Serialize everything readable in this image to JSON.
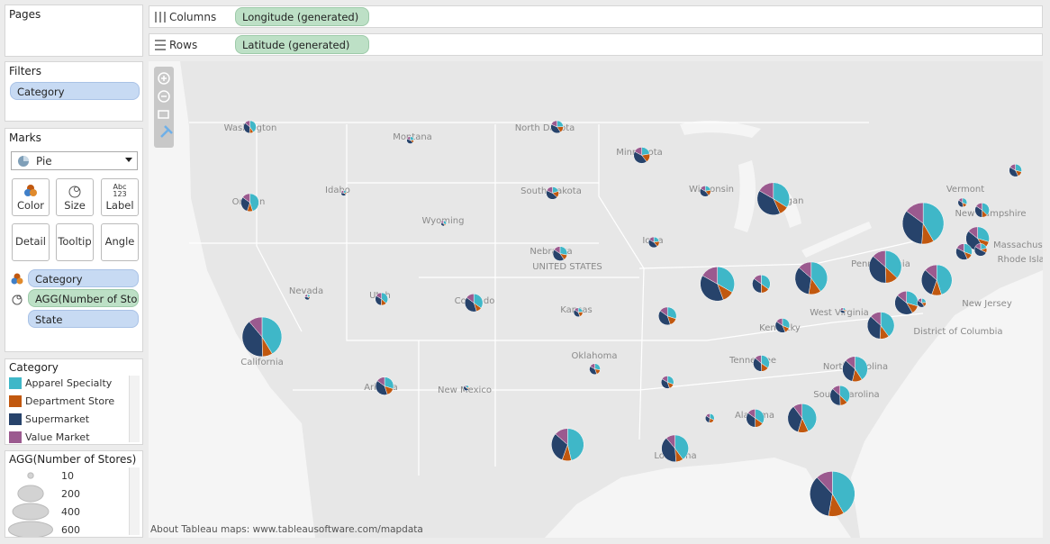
{
  "shelves": {
    "pages": "Pages",
    "columns": {
      "label": "Columns",
      "pill": "Longitude (generated)"
    },
    "rows": {
      "label": "Rows",
      "pill": "Latitude (generated)"
    }
  },
  "filters": {
    "title": "Filters",
    "pill": "Category"
  },
  "marks": {
    "title": "Marks",
    "type": "Pie",
    "buttons": [
      "Color",
      "Size",
      "Label",
      "Detail",
      "Tooltip",
      "Angle"
    ],
    "label_icon": [
      "Abc",
      "123"
    ],
    "fields": [
      "Category",
      "AGG(Number of Sto..",
      "State"
    ]
  },
  "color_legend": {
    "title": "Category",
    "items": [
      {
        "name": "Apparel Specialty",
        "color": "#3fb7c8"
      },
      {
        "name": "Department Store",
        "color": "#c1580f"
      },
      {
        "name": "Supermarket",
        "color": "#27436b"
      },
      {
        "name": "Value Market",
        "color": "#9b5a8f"
      }
    ]
  },
  "size_legend": {
    "title": "AGG(Number of Stores)",
    "values": [
      10,
      200,
      400,
      600
    ]
  },
  "map": {
    "credit": "About Tableau maps: www.tableausoftware.com/mapdata",
    "labels": [
      "Washington",
      "Montana",
      "North Dakota",
      "Minnesota",
      "Oregon",
      "Idaho",
      "South Dakota",
      "Wisconsin",
      "Michigan",
      "Vermont",
      "New Hampshire",
      "Massachusetts",
      "Rhode Island",
      "Wyoming",
      "Nebraska",
      "UNITED STATES",
      "Iowa",
      "Nevada",
      "Utah",
      "Colorado",
      "Kansas",
      "Pennsylvania",
      "New Jersey",
      "West Virginia",
      "District of Columbia",
      "Kentucky",
      "California",
      "Arizona",
      "New Mexico",
      "Oklahoma",
      "Tennessee",
      "North Carolina",
      "South Carolina",
      "Alabama",
      "Louisiana"
    ],
    "pies": [
      {
        "lon": -120.2,
        "lat": 47.9,
        "stores": [
          20,
          5,
          17,
          7
        ]
      },
      {
        "lon": -120.2,
        "lat": 43.9,
        "stores": [
          45,
          10,
          30,
          15
        ]
      },
      {
        "lon": -109.6,
        "lat": 47.2,
        "stores": [
          4,
          2,
          7,
          3
        ]
      },
      {
        "lon": -114.0,
        "lat": 44.4,
        "stores": [
          2,
          1,
          4,
          2
        ]
      },
      {
        "lon": -107.4,
        "lat": 42.8,
        "stores": [
          3,
          1,
          3,
          2
        ]
      },
      {
        "lon": -99.9,
        "lat": 47.9,
        "stores": [
          12,
          8,
          20,
          9
        ]
      },
      {
        "lon": -100.2,
        "lat": 44.4,
        "stores": [
          10,
          8,
          22,
          9
        ]
      },
      {
        "lon": -94.3,
        "lat": 46.4,
        "stores": [
          18,
          14,
          35,
          14
        ]
      },
      {
        "lon": -90.1,
        "lat": 44.5,
        "stores": [
          8,
          6,
          16,
          6
        ]
      },
      {
        "lon": -85.6,
        "lat": 44.1,
        "stores": [
          110,
          30,
          130,
          54
        ]
      },
      {
        "lon": -93.5,
        "lat": 41.8,
        "stores": [
          8,
          6,
          16,
          6
        ]
      },
      {
        "lon": -99.7,
        "lat": 41.2,
        "stores": [
          18,
          8,
          28,
          10
        ]
      },
      {
        "lon": -116.4,
        "lat": 38.9,
        "stores": [
          2,
          1,
          4,
          2
        ]
      },
      {
        "lon": -111.5,
        "lat": 38.8,
        "stores": [
          18,
          7,
          16,
          8
        ]
      },
      {
        "lon": -105.4,
        "lat": 38.6,
        "stores": [
          35,
          10,
          40,
          15
        ]
      },
      {
        "lon": -98.5,
        "lat": 38.1,
        "stores": [
          6,
          5,
          10,
          4
        ]
      },
      {
        "lon": -92.6,
        "lat": 37.9,
        "stores": [
          30,
          15,
          40,
          15
        ]
      },
      {
        "lon": -89.3,
        "lat": 39.6,
        "stores": [
          120,
          40,
          140,
          61
        ]
      },
      {
        "lon": -86.4,
        "lat": 39.6,
        "stores": [
          35,
          15,
          35,
          15
        ]
      },
      {
        "lon": -83.1,
        "lat": 39.9,
        "stores": [
          130,
          40,
          110,
          44
        ]
      },
      {
        "lon": -78.2,
        "lat": 40.5,
        "stores": [
          120,
          40,
          120,
          44
        ]
      },
      {
        "lon": -75.7,
        "lat": 42.8,
        "stores": [
          220,
          50,
          180,
          79
        ]
      },
      {
        "lon": -73.1,
        "lat": 43.9,
        "stores": [
          8,
          4,
          9,
          4
        ]
      },
      {
        "lon": -71.8,
        "lat": 43.5,
        "stores": [
          24,
          8,
          22,
          10
        ]
      },
      {
        "lon": -69.6,
        "lat": 45.6,
        "stores": [
          14,
          7,
          20,
          8
        ]
      },
      {
        "lon": -72.1,
        "lat": 42.0,
        "stores": [
          50,
          20,
          75,
          24
        ]
      },
      {
        "lon": -73.0,
        "lat": 41.3,
        "stores": [
          25,
          10,
          32,
          14
        ]
      },
      {
        "lon": -71.9,
        "lat": 41.4,
        "stores": [
          10,
          6,
          25,
          8
        ]
      },
      {
        "lon": -74.8,
        "lat": 39.8,
        "stores": [
          130,
          30,
          90,
          39
        ]
      },
      {
        "lon": -76.8,
        "lat": 38.6,
        "stores": [
          50,
          20,
          75,
          24
        ]
      },
      {
        "lon": -75.8,
        "lat": 38.6,
        "stores": [
          6,
          4,
          11,
          4
        ]
      },
      {
        "lon": -78.5,
        "lat": 37.4,
        "stores": [
          90,
          25,
          80,
          30
        ]
      },
      {
        "lon": -81.0,
        "lat": 38.2,
        "stores": [
          2,
          1,
          4,
          2
        ]
      },
      {
        "lon": -85.0,
        "lat": 37.4,
        "stores": [
          20,
          8,
          26,
          10
        ]
      },
      {
        "lon": -119.4,
        "lat": 36.8,
        "stores": [
          200,
          40,
          190,
          54
        ]
      },
      {
        "lon": -111.3,
        "lat": 34.2,
        "stores": [
          30,
          15,
          40,
          15
        ]
      },
      {
        "lon": -105.9,
        "lat": 34.1,
        "stores": [
          2,
          1,
          5,
          1
        ]
      },
      {
        "lon": -97.4,
        "lat": 35.1,
        "stores": [
          10,
          6,
          14,
          6
        ]
      },
      {
        "lon": -92.6,
        "lat": 34.4,
        "stores": [
          15,
          7,
          19,
          8
        ]
      },
      {
        "lon": -86.4,
        "lat": 35.4,
        "stores": [
          28,
          12,
          30,
          11
        ]
      },
      {
        "lon": -80.2,
        "lat": 35.1,
        "stores": [
          80,
          25,
          65,
          26
        ]
      },
      {
        "lon": -81.2,
        "lat": 33.7,
        "stores": [
          45,
          15,
          45,
          16
        ]
      },
      {
        "lon": -83.7,
        "lat": 32.5,
        "stores": [
          110,
          30,
          90,
          26
        ]
      },
      {
        "lon": -86.8,
        "lat": 32.5,
        "stores": [
          35,
          15,
          35,
          15
        ]
      },
      {
        "lon": -89.8,
        "lat": 32.5,
        "stores": [
          8,
          5,
          8,
          4
        ]
      },
      {
        "lon": -92.1,
        "lat": 30.9,
        "stores": [
          90,
          20,
          90,
          25
        ]
      },
      {
        "lon": -99.2,
        "lat": 31.1,
        "stores": [
          150,
          30,
          100,
          44
        ]
      },
      {
        "lon": -81.7,
        "lat": 28.5,
        "stores": [
          260,
          70,
          220,
          75
        ]
      }
    ]
  }
}
